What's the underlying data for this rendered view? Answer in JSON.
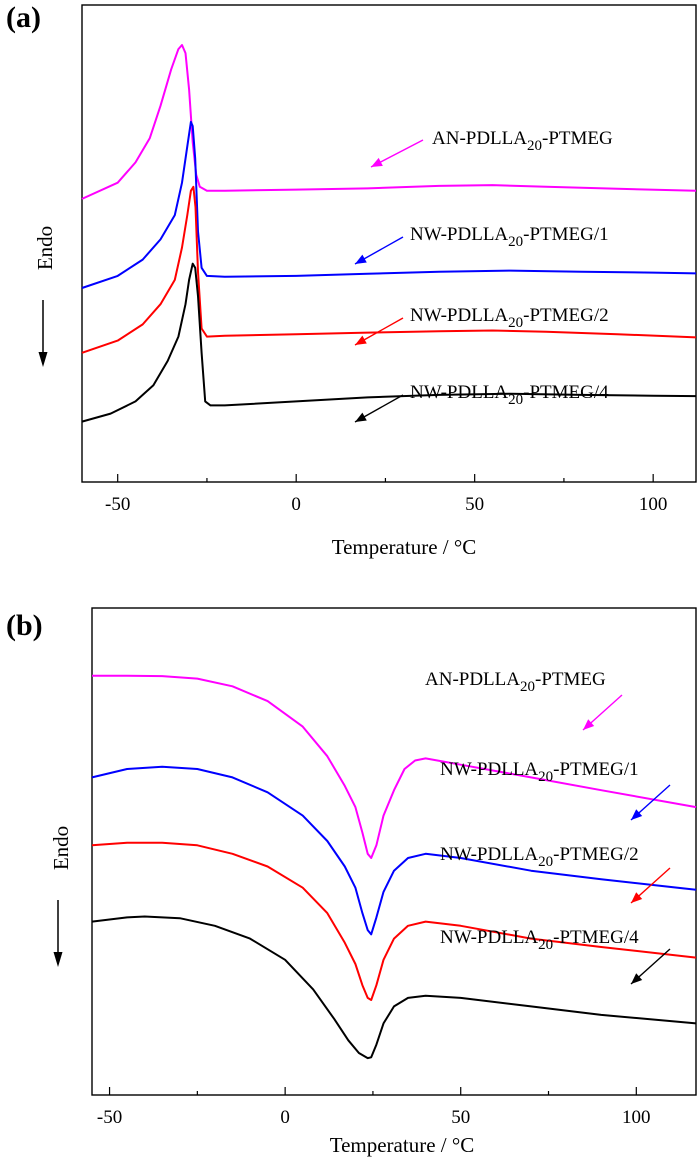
{
  "chart_data": [
    {
      "panel": "(a)",
      "type": "line",
      "xlabel": "Temperature / °C",
      "ylabel": "Endo",
      "xlim": [
        -60,
        112
      ],
      "ylim": [
        0,
        100
      ],
      "xticks": [
        -50,
        0,
        50,
        100
      ],
      "series": [
        {
          "name": "AN-PDLLA20-PTMEG",
          "label_main": "AN-PDLLA",
          "label_sub": "20",
          "label_tail": "-PTMEG",
          "color": "#ff00ff",
          "points": [
            [
              -60,
              62
            ],
            [
              -50,
              66
            ],
            [
              -45,
              71
            ],
            [
              -41,
              77
            ],
            [
              -38,
              85
            ],
            [
              -35,
              94
            ],
            [
              -33,
              99
            ],
            [
              -32,
              100
            ],
            [
              -31,
              98
            ],
            [
              -30,
              89
            ],
            [
              -29,
              76
            ],
            [
              -28,
              68
            ],
            [
              -27,
              65
            ],
            [
              -25,
              64
            ],
            [
              -20,
              64
            ],
            [
              0,
              64.3
            ],
            [
              20,
              64.6
            ],
            [
              40,
              65.2
            ],
            [
              55,
              65.4
            ],
            [
              70,
              65
            ],
            [
              90,
              64.5
            ],
            [
              112,
              64
            ]
          ]
        },
        {
          "name": "NW-PDLLA20-PTMEG/1",
          "label_main": "NW-PDLLA",
          "label_sub": "20",
          "label_tail": "-PTMEG/1",
          "color": "#0000ff",
          "points": [
            [
              -60,
              40
            ],
            [
              -50,
              43
            ],
            [
              -43,
              47
            ],
            [
              -38,
              52
            ],
            [
              -34,
              58
            ],
            [
              -32,
              66
            ],
            [
              -30.5,
              75
            ],
            [
              -29.5,
              81
            ],
            [
              -29,
              80
            ],
            [
              -28.3,
              72
            ],
            [
              -27.5,
              54
            ],
            [
              -26.5,
              45
            ],
            [
              -25,
              43
            ],
            [
              -20,
              42.8
            ],
            [
              0,
              43
            ],
            [
              20,
              43.5
            ],
            [
              40,
              44
            ],
            [
              60,
              44.3
            ],
            [
              80,
              44
            ],
            [
              100,
              43.8
            ],
            [
              112,
              43.6
            ]
          ]
        },
        {
          "name": "NW-PDLLA20-PTMEG/2",
          "label_main": "NW-PDLLA",
          "label_sub": "20",
          "label_tail": "-PTMEG/2",
          "color": "#ff0000",
          "points": [
            [
              -60,
              24
            ],
            [
              -50,
              27
            ],
            [
              -43,
              31
            ],
            [
              -38,
              36
            ],
            [
              -34,
              42
            ],
            [
              -32,
              50
            ],
            [
              -30.5,
              58
            ],
            [
              -29.5,
              64
            ],
            [
              -28.8,
              65
            ],
            [
              -28.2,
              60
            ],
            [
              -27.5,
              44
            ],
            [
              -26.5,
              30
            ],
            [
              -25,
              28
            ],
            [
              -20,
              28.2
            ],
            [
              0,
              28.6
            ],
            [
              20,
              29
            ],
            [
              40,
              29.3
            ],
            [
              55,
              29.5
            ],
            [
              70,
              29.2
            ],
            [
              90,
              28.6
            ],
            [
              112,
              27.8
            ]
          ]
        },
        {
          "name": "NW-PDLLA20-PTMEG/4",
          "label_main": "NW-PDLLA",
          "label_sub": "20",
          "label_tail": "-PTMEG/4",
          "color": "#000000",
          "points": [
            [
              -60,
              7
            ],
            [
              -52,
              9
            ],
            [
              -45,
              12
            ],
            [
              -40,
              16
            ],
            [
              -36,
              22
            ],
            [
              -33,
              28
            ],
            [
              -31,
              36
            ],
            [
              -30,
              42
            ],
            [
              -29,
              46
            ],
            [
              -28.3,
              45
            ],
            [
              -27.5,
              38
            ],
            [
              -26.5,
              24
            ],
            [
              -25.5,
              12
            ],
            [
              -24,
              11
            ],
            [
              -20,
              11
            ],
            [
              0,
              12
            ],
            [
              20,
              13
            ],
            [
              40,
              13.6
            ],
            [
              60,
              13.9
            ],
            [
              80,
              13.6
            ],
            [
              100,
              13.4
            ],
            [
              112,
              13.3
            ]
          ]
        }
      ]
    },
    {
      "panel": "(b)",
      "type": "line",
      "xlabel": "Temperature / °C",
      "ylabel": "Endo",
      "xlim": [
        -55,
        117
      ],
      "ylim": [
        0,
        100
      ],
      "xticks": [
        -50,
        0,
        50,
        100
      ],
      "series": [
        {
          "name": "AN-PDLLA20-PTMEG",
          "label_main": "AN-PDLLA",
          "label_sub": "20",
          "label_tail": "-PTMEG",
          "color": "#ff00ff",
          "points": [
            [
              -55,
              93
            ],
            [
              -45,
              93
            ],
            [
              -35,
              92.9
            ],
            [
              -25,
              92.3
            ],
            [
              -15,
              90.5
            ],
            [
              -5,
              87
            ],
            [
              5,
              81
            ],
            [
              12,
              74
            ],
            [
              17,
              67
            ],
            [
              20,
              62
            ],
            [
              22,
              56
            ],
            [
              23.5,
              51
            ],
            [
              24.5,
              50
            ],
            [
              26,
              53
            ],
            [
              28,
              60
            ],
            [
              31,
              66
            ],
            [
              34,
              71
            ],
            [
              37,
              73
            ],
            [
              40,
              73.5
            ],
            [
              50,
              72
            ],
            [
              70,
              69
            ],
            [
              90,
              66
            ],
            [
              117,
              62
            ]
          ]
        },
        {
          "name": "NW-PDLLA20-PTMEG/1",
          "label_main": "NW-PDLLA",
          "label_sub": "20",
          "label_tail": "-PTMEG/1",
          "color": "#0000ff",
          "points": [
            [
              -55,
              69
            ],
            [
              -45,
              71
            ],
            [
              -35,
              71.5
            ],
            [
              -25,
              71
            ],
            [
              -15,
              69
            ],
            [
              -5,
              65.5
            ],
            [
              5,
              60
            ],
            [
              12,
              54
            ],
            [
              17,
              48
            ],
            [
              20,
              43
            ],
            [
              22,
              37
            ],
            [
              23.5,
              33
            ],
            [
              24.5,
              32
            ],
            [
              26,
              36
            ],
            [
              28,
              42
            ],
            [
              31,
              47
            ],
            [
              35,
              50
            ],
            [
              40,
              51
            ],
            [
              50,
              50
            ],
            [
              70,
              47
            ],
            [
              90,
              45
            ],
            [
              117,
              42.5
            ]
          ]
        },
        {
          "name": "NW-PDLLA20-PTMEG/2",
          "label_main": "NW-PDLLA",
          "label_sub": "20",
          "label_tail": "-PTMEG/2",
          "color": "#ff0000",
          "points": [
            [
              -55,
              53
            ],
            [
              -45,
              53.6
            ],
            [
              -35,
              53.6
            ],
            [
              -25,
              53
            ],
            [
              -15,
              51
            ],
            [
              -5,
              48
            ],
            [
              5,
              43
            ],
            [
              12,
              37
            ],
            [
              17,
              30
            ],
            [
              20,
              25
            ],
            [
              22,
              20
            ],
            [
              23.5,
              17
            ],
            [
              24.5,
              16.5
            ],
            [
              26,
              20
            ],
            [
              28,
              26
            ],
            [
              31,
              31
            ],
            [
              35,
              34
            ],
            [
              40,
              35
            ],
            [
              50,
              34
            ],
            [
              70,
              31
            ],
            [
              90,
              29
            ],
            [
              117,
              26.5
            ]
          ]
        },
        {
          "name": "NW-PDLLA20-PTMEG/4",
          "label_main": "NW-PDLLA",
          "label_sub": "20",
          "label_tail": "-PTMEG/4",
          "color": "#000000",
          "points": [
            [
              -55,
              35
            ],
            [
              -45,
              36
            ],
            [
              -40,
              36.2
            ],
            [
              -30,
              35.8
            ],
            [
              -20,
              34
            ],
            [
              -10,
              31
            ],
            [
              0,
              26
            ],
            [
              8,
              19
            ],
            [
              14,
              12
            ],
            [
              18,
              7
            ],
            [
              21,
              4
            ],
            [
              23.5,
              2.8
            ],
            [
              24.5,
              3
            ],
            [
              26,
              6
            ],
            [
              28,
              11
            ],
            [
              31,
              15
            ],
            [
              35,
              17
            ],
            [
              40,
              17.5
            ],
            [
              50,
              17
            ],
            [
              70,
              15
            ],
            [
              90,
              13
            ],
            [
              117,
              11
            ]
          ]
        }
      ]
    }
  ]
}
